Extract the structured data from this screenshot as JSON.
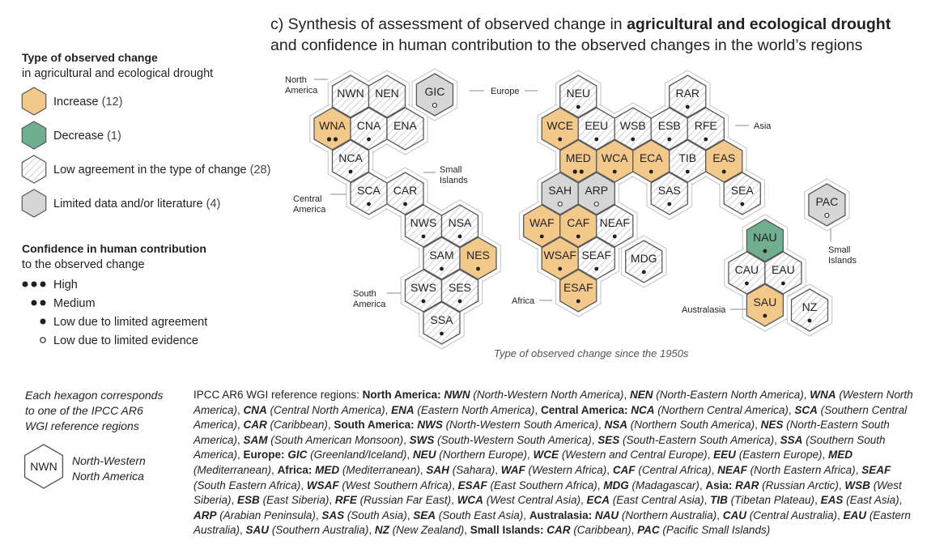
{
  "title": {
    "line1_prefix": "c) Synthesis of assessment of observed change in ",
    "line1_bold": "agricultural and ecological drought",
    "line2": "and confidence in human contribution to the observed changes in the world’s regions"
  },
  "colors": {
    "increase": "#f2c98a",
    "decrease": "#6fae8f",
    "low_agreement": "#ffffff",
    "limited_data": "#d6d6d6",
    "hex_stroke": "#595959",
    "outer_ring": "#cccccc",
    "hatch": "#cfcfcf"
  },
  "legend": {
    "type_heading": "Type of observed change",
    "type_subheading": "in agricultural and ecological drought",
    "type_items": [
      {
        "kind": "increase",
        "label": "Increase",
        "count": "(12)"
      },
      {
        "kind": "decrease",
        "label": "Decrease",
        "count": "(1)"
      },
      {
        "kind": "low_agreement",
        "label": "Low agreement in the type of change",
        "count": "(28)"
      },
      {
        "kind": "limited_data",
        "label": "Limited data and/or literature",
        "count": "(4)"
      }
    ],
    "confidence_heading": "Confidence in human contribution",
    "confidence_subheading": "to the observed change",
    "confidence_items": [
      {
        "symbol": "●●●",
        "label": "High"
      },
      {
        "symbol": "●●",
        "label": "Medium"
      },
      {
        "symbol": "●",
        "label": "Low due to limited agreement"
      },
      {
        "symbol": "○",
        "label": "Low due to limited evidence"
      }
    ]
  },
  "continents": {
    "north_america": "North\nAmerica",
    "central_america": "Central\nAmerica",
    "small_islands_caribbean": "Small\nIslands",
    "south_america": "South\nAmerica",
    "europe": "Europe",
    "asia": "Asia",
    "africa": "Africa",
    "australasia": "Australasia",
    "small_islands_pacific": "Small\nIslands"
  },
  "regions": [
    {
      "code": "NWN",
      "type": "low_agreement",
      "confidence": "none"
    },
    {
      "code": "NEN",
      "type": "low_agreement",
      "confidence": "none"
    },
    {
      "code": "GIC",
      "type": "limited_data",
      "confidence": "low_evidence"
    },
    {
      "code": "WNA",
      "type": "increase",
      "confidence": "medium"
    },
    {
      "code": "CNA",
      "type": "low_agreement",
      "confidence": "low_agreement"
    },
    {
      "code": "ENA",
      "type": "low_agreement",
      "confidence": "none"
    },
    {
      "code": "NCA",
      "type": "low_agreement",
      "confidence": "low_agreement"
    },
    {
      "code": "SCA",
      "type": "low_agreement",
      "confidence": "low_agreement"
    },
    {
      "code": "CAR",
      "type": "low_agreement",
      "confidence": "low_agreement"
    },
    {
      "code": "NWS",
      "type": "low_agreement",
      "confidence": "low_agreement"
    },
    {
      "code": "NSA",
      "type": "low_agreement",
      "confidence": "low_agreement"
    },
    {
      "code": "SAM",
      "type": "low_agreement",
      "confidence": "low_agreement"
    },
    {
      "code": "NES",
      "type": "increase",
      "confidence": "low_agreement"
    },
    {
      "code": "SWS",
      "type": "low_agreement",
      "confidence": "low_agreement"
    },
    {
      "code": "SES",
      "type": "low_agreement",
      "confidence": "low_agreement"
    },
    {
      "code": "SSA",
      "type": "low_agreement",
      "confidence": "low_agreement"
    },
    {
      "code": "NEU",
      "type": "low_agreement",
      "confidence": "low_agreement"
    },
    {
      "code": "WCE",
      "type": "increase",
      "confidence": "low_agreement"
    },
    {
      "code": "EEU",
      "type": "low_agreement",
      "confidence": "low_agreement"
    },
    {
      "code": "WSB",
      "type": "low_agreement",
      "confidence": "low_agreement"
    },
    {
      "code": "ESB",
      "type": "low_agreement",
      "confidence": "low_agreement"
    },
    {
      "code": "RFE",
      "type": "low_agreement",
      "confidence": "low_agreement"
    },
    {
      "code": "RAR",
      "type": "low_agreement",
      "confidence": "low_agreement"
    },
    {
      "code": "MED",
      "type": "increase",
      "confidence": "medium"
    },
    {
      "code": "WCA",
      "type": "increase",
      "confidence": "low_agreement"
    },
    {
      "code": "ECA",
      "type": "increase",
      "confidence": "low_agreement"
    },
    {
      "code": "TIB",
      "type": "low_agreement",
      "confidence": "low_agreement"
    },
    {
      "code": "EAS",
      "type": "increase",
      "confidence": "low_agreement"
    },
    {
      "code": "SAH",
      "type": "limited_data",
      "confidence": "low_evidence"
    },
    {
      "code": "ARP",
      "type": "limited_data",
      "confidence": "low_evidence"
    },
    {
      "code": "SAS",
      "type": "low_agreement",
      "confidence": "low_agreement"
    },
    {
      "code": "SEA",
      "type": "low_agreement",
      "confidence": "low_agreement"
    },
    {
      "code": "WAF",
      "type": "increase",
      "confidence": "low_agreement"
    },
    {
      "code": "CAF",
      "type": "increase",
      "confidence": "low_agreement"
    },
    {
      "code": "NEAF",
      "type": "low_agreement",
      "confidence": "low_agreement"
    },
    {
      "code": "WSAF",
      "type": "increase",
      "confidence": "low_agreement"
    },
    {
      "code": "SEAF",
      "type": "low_agreement",
      "confidence": "low_agreement"
    },
    {
      "code": "ESAF",
      "type": "increase",
      "confidence": "low_agreement"
    },
    {
      "code": "MDG",
      "type": "low_agreement",
      "confidence": "low_agreement"
    },
    {
      "code": "PAC",
      "type": "limited_data",
      "confidence": "low_evidence"
    },
    {
      "code": "NAU",
      "type": "decrease",
      "confidence": "low_agreement"
    },
    {
      "code": "CAU",
      "type": "low_agreement",
      "confidence": "low_agreement"
    },
    {
      "code": "EAU",
      "type": "low_agreement",
      "confidence": "low_agreement"
    },
    {
      "code": "SAU",
      "type": "increase",
      "confidence": "low_agreement"
    },
    {
      "code": "NZ",
      "type": "low_agreement",
      "confidence": "low_agreement"
    }
  ],
  "caption": "Type of observed change since the 1950s",
  "hex_note": {
    "text": "Each hexagon corresponds\nto one of the IPCC AR6\nWGI reference regions",
    "example_code": "NWN",
    "example_name": "North-Western\nNorth America"
  },
  "reference": {
    "intro": "IPCC AR6 WGI reference regions: ",
    "groups": [
      {
        "region": "North America:",
        "items": [
          {
            "code": "NWN",
            "name": "(North-Western North America)"
          },
          {
            "code": "NEN",
            "name": "(North-Eastern North America)"
          },
          {
            "code": "WNA",
            "name": "(Western North America)"
          },
          {
            "code": "CNA",
            "name": "(Central North America)"
          },
          {
            "code": "ENA",
            "name": "(Eastern North America)"
          }
        ]
      },
      {
        "region": "Central America:",
        "items": [
          {
            "code": "NCA",
            "name": "(Northern Central America)"
          },
          {
            "code": "SCA",
            "name": "(Southern Central America)"
          },
          {
            "code": "CAR",
            "name": "(Caribbean)"
          }
        ]
      },
      {
        "region": "South America:",
        "items": [
          {
            "code": "NWS",
            "name": "(North-Western South America)"
          },
          {
            "code": "NSA",
            "name": "(Northern South America)"
          },
          {
            "code": "NES",
            "name": "(North-Eastern South America)"
          },
          {
            "code": "SAM",
            "name": "(South American Monsoon)"
          },
          {
            "code": "SWS",
            "name": "(South-Western South America)"
          },
          {
            "code": "SES",
            "name": "(South-Eastern South America)"
          },
          {
            "code": "SSA",
            "name": "(Southern South America)"
          }
        ]
      },
      {
        "region": "Europe:",
        "items": [
          {
            "code": "GIC",
            "name": "(Greenland/Iceland)"
          },
          {
            "code": "NEU",
            "name": "(Northern Europe)"
          },
          {
            "code": "WCE",
            "name": "(Western and Central Europe)"
          },
          {
            "code": "EEU",
            "name": "(Eastern Europe)"
          },
          {
            "code": "MED",
            "name": "(Mediterranean)"
          }
        ]
      },
      {
        "region": "Africa:",
        "items": [
          {
            "code": "MED",
            "name": "(Mediterranean)"
          },
          {
            "code": "SAH",
            "name": "(Sahara)"
          },
          {
            "code": "WAF",
            "name": "(Western Africa)"
          },
          {
            "code": "CAF",
            "name": "(Central Africa)"
          },
          {
            "code": "NEAF",
            "name": "(North Eastern Africa)"
          },
          {
            "code": "SEAF",
            "name": "(South Eastern Africa)"
          },
          {
            "code": "WSAF",
            "name": "(West Southern Africa)"
          },
          {
            "code": "ESAF",
            "name": "(East Southern Africa)"
          },
          {
            "code": "MDG",
            "name": "(Madagascar)"
          }
        ]
      },
      {
        "region": "Asia:",
        "items": [
          {
            "code": "RAR",
            "name": "(Russian Arctic)"
          },
          {
            "code": "WSB",
            "name": "(West Siberia)"
          },
          {
            "code": "ESB",
            "name": "(East Siberia)"
          },
          {
            "code": "RFE",
            "name": "(Russian Far East)"
          },
          {
            "code": "WCA",
            "name": "(West Central Asia)"
          },
          {
            "code": "ECA",
            "name": "(East Central Asia)"
          },
          {
            "code": "TIB",
            "name": "(Tibetan Plateau)"
          },
          {
            "code": "EAS",
            "name": "(East Asia)"
          },
          {
            "code": "ARP",
            "name": "(Arabian Peninsula)"
          },
          {
            "code": "SAS",
            "name": "(South Asia)"
          },
          {
            "code": "SEA",
            "name": "(South East Asia)"
          }
        ]
      },
      {
        "region": "Australasia:",
        "items": [
          {
            "code": "NAU",
            "name": "(Northern Australia)"
          },
          {
            "code": "CAU",
            "name": "(Central Australia)"
          },
          {
            "code": "EAU",
            "name": "(Eastern Australia)"
          },
          {
            "code": "SAU",
            "name": "(Southern Australia)"
          },
          {
            "code": "NZ",
            "name": "(New Zealand)"
          }
        ]
      },
      {
        "region": "Small Islands:",
        "items": [
          {
            "code": "CAR",
            "name": "(Caribbean)"
          },
          {
            "code": "PAC",
            "name": "(Pacific Small Islands)"
          }
        ]
      }
    ]
  }
}
